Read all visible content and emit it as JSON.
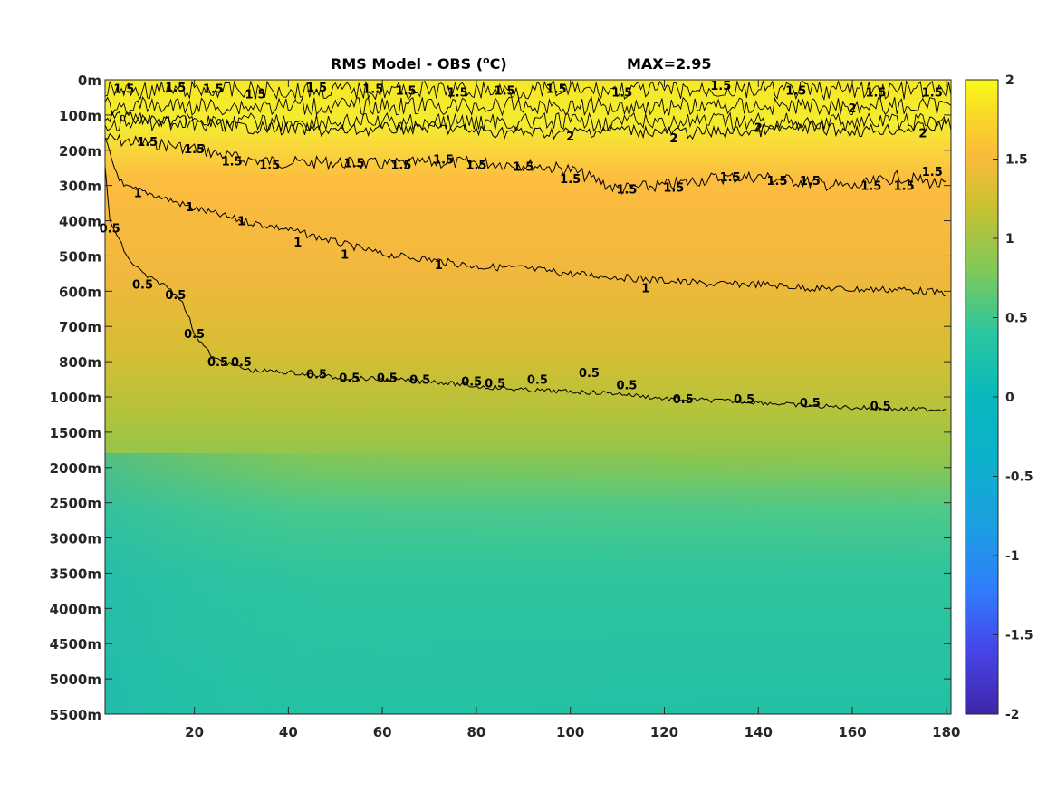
{
  "chart_data": {
    "type": "heatmap",
    "title_main": "RMS Model - OBS (",
    "title_unit_sup": "o",
    "title_unit_tail": "C)",
    "title_max": "MAX=2.95",
    "x_ticks": [
      20,
      40,
      60,
      80,
      100,
      120,
      140,
      160,
      180
    ],
    "x_tick_labels": [
      "20",
      "40",
      "60",
      "80",
      "100",
      "120",
      "140",
      "160",
      "180"
    ],
    "xlim": [
      1,
      181
    ],
    "y_tick_labels": [
      "0m",
      "100m",
      "200m",
      "300m",
      "400m",
      "500m",
      "600m",
      "700m",
      "800m",
      "1000m",
      "1500m",
      "2000m",
      "2500m",
      "3000m",
      "3500m",
      "4000m",
      "4500m",
      "5000m",
      "5500m"
    ],
    "colorbar": {
      "ticks": [
        2,
        1.5,
        1,
        0.5,
        0,
        -0.5,
        -1,
        -1.5,
        -2
      ],
      "tick_labels": [
        "2",
        "1.5",
        "1",
        "0.5",
        "0",
        "-0.5",
        "-1",
        "-1.5",
        "-2"
      ],
      "range": [
        -2,
        2
      ],
      "colormap": "parula",
      "colors": [
        "#3e26a8",
        "#4744e8",
        "#2f7ffb",
        "#1ca3dd",
        "#0bb7c1",
        "#2ac6a0",
        "#7fc95a",
        "#c9c130",
        "#fbba3b",
        "#f8dc26",
        "#f9fb15"
      ]
    },
    "contours": [
      {
        "level": "1.5",
        "x": [
          1,
          5,
          10,
          20,
          30,
          40,
          50,
          60,
          70,
          80,
          90,
          100,
          110,
          120,
          130,
          140,
          150,
          160,
          170,
          180
        ],
        "y_index": [
          1.65,
          1.75,
          1.78,
          1.95,
          2.25,
          2.35,
          2.35,
          2.4,
          2.35,
          2.35,
          2.4,
          2.55,
          3.1,
          3.0,
          2.8,
          2.75,
          2.9,
          3.05,
          2.75,
          3.0
        ],
        "labels": [
          {
            "x": 10,
            "y_index": 1.75
          },
          {
            "x": 20,
            "y_index": 1.95
          },
          {
            "x": 28,
            "y_index": 2.3
          },
          {
            "x": 36,
            "y_index": 2.4
          },
          {
            "x": 54,
            "y_index": 2.35
          },
          {
            "x": 64,
            "y_index": 2.4
          },
          {
            "x": 73,
            "y_index": 2.25
          },
          {
            "x": 80,
            "y_index": 2.4
          },
          {
            "x": 90,
            "y_index": 2.45
          },
          {
            "x": 100,
            "y_index": 2.8
          },
          {
            "x": 112,
            "y_index": 3.1
          },
          {
            "x": 122,
            "y_index": 3.05
          },
          {
            "x": 134,
            "y_index": 2.75
          },
          {
            "x": 144,
            "y_index": 2.85
          },
          {
            "x": 151,
            "y_index": 2.85
          },
          {
            "x": 164,
            "y_index": 3.0
          },
          {
            "x": 171,
            "y_index": 3.0
          },
          {
            "x": 177,
            "y_index": 2.6
          }
        ]
      },
      {
        "level": "1",
        "x": [
          1,
          3,
          5,
          10,
          20,
          30,
          40,
          50,
          60,
          70,
          80,
          90,
          100,
          110,
          120,
          130,
          140,
          150,
          160,
          170,
          180
        ],
        "y_index": [
          1.7,
          2.5,
          3.05,
          3.2,
          3.65,
          4.0,
          4.25,
          4.6,
          4.95,
          5.1,
          5.3,
          5.35,
          5.5,
          5.6,
          5.7,
          5.8,
          5.8,
          5.9,
          5.95,
          5.95,
          6.05
        ],
        "labels": [
          {
            "x": 8,
            "y_index": 3.2
          },
          {
            "x": 19,
            "y_index": 3.6
          },
          {
            "x": 30,
            "y_index": 4.0
          },
          {
            "x": 42,
            "y_index": 4.6
          },
          {
            "x": 52,
            "y_index": 4.95
          },
          {
            "x": 72,
            "y_index": 5.25
          },
          {
            "x": 116,
            "y_index": 5.9
          }
        ]
      },
      {
        "level": "0.5",
        "x": [
          1,
          2,
          4,
          6,
          10,
          14,
          17,
          19,
          20,
          22,
          24,
          28,
          32,
          40,
          50,
          60,
          70,
          80,
          90,
          100,
          110,
          120,
          130,
          140,
          150,
          160,
          170,
          180
        ],
        "y_index": [
          2.5,
          4.0,
          4.55,
          5.1,
          5.6,
          5.85,
          6.2,
          6.8,
          7.2,
          7.55,
          7.9,
          8.1,
          8.25,
          8.3,
          8.45,
          8.5,
          8.55,
          8.7,
          8.8,
          8.85,
          8.9,
          9.05,
          9.1,
          9.15,
          9.25,
          9.3,
          9.35,
          9.35
        ],
        "labels": [
          {
            "x": 2,
            "y_index": 4.2
          },
          {
            "x": 9,
            "y_index": 5.8
          },
          {
            "x": 16,
            "y_index": 6.1
          },
          {
            "x": 20,
            "y_index": 7.2
          },
          {
            "x": 25,
            "y_index": 8.0
          },
          {
            "x": 30,
            "y_index": 8.0
          },
          {
            "x": 46,
            "y_index": 8.35
          },
          {
            "x": 53,
            "y_index": 8.45
          },
          {
            "x": 61,
            "y_index": 8.45
          },
          {
            "x": 68,
            "y_index": 8.5
          },
          {
            "x": 79,
            "y_index": 8.55
          },
          {
            "x": 84,
            "y_index": 8.6
          },
          {
            "x": 93,
            "y_index": 8.5
          },
          {
            "x": 104,
            "y_index": 8.3
          },
          {
            "x": 112,
            "y_index": 8.65
          },
          {
            "x": 124,
            "y_index": 9.05
          },
          {
            "x": 137,
            "y_index": 9.05
          },
          {
            "x": 151,
            "y_index": 9.15
          },
          {
            "x": 166,
            "y_index": 9.25
          }
        ]
      },
      {
        "level": "2",
        "x": [
          1,
          10,
          20,
          30,
          40,
          50,
          60,
          70,
          80,
          90,
          100,
          110,
          120,
          130,
          140,
          150,
          160,
          170,
          180
        ],
        "y_index": [
          1.0,
          1.15,
          1.2,
          1.35,
          1.4,
          1.45,
          1.4,
          1.35,
          1.45,
          1.5,
          1.5,
          1.4,
          1.5,
          1.5,
          1.45,
          1.35,
          1.45,
          1.4,
          1.3
        ],
        "labels": [
          {
            "x": 100,
            "y_index": 1.6
          },
          {
            "x": 122,
            "y_index": 1.65
          },
          {
            "x": 140,
            "y_index": 1.35
          },
          {
            "x": 160,
            "y_index": 0.8
          },
          {
            "x": 175,
            "y_index": 1.5
          }
        ]
      }
    ],
    "top_band_labels": [
      {
        "x": 5,
        "y_index": 0.25
      },
      {
        "x": 16,
        "y_index": 0.2
      },
      {
        "x": 24,
        "y_index": 0.25
      },
      {
        "x": 33,
        "y_index": 0.4
      },
      {
        "x": 46,
        "y_index": 0.2
      },
      {
        "x": 58,
        "y_index": 0.25
      },
      {
        "x": 65,
        "y_index": 0.3
      },
      {
        "x": 76,
        "y_index": 0.35
      },
      {
        "x": 86,
        "y_index": 0.3
      },
      {
        "x": 97,
        "y_index": 0.25
      },
      {
        "x": 111,
        "y_index": 0.35
      },
      {
        "x": 132,
        "y_index": 0.15
      },
      {
        "x": 148,
        "y_index": 0.3
      },
      {
        "x": 165,
        "y_index": 0.35
      },
      {
        "x": 177,
        "y_index": 0.35
      }
    ]
  }
}
